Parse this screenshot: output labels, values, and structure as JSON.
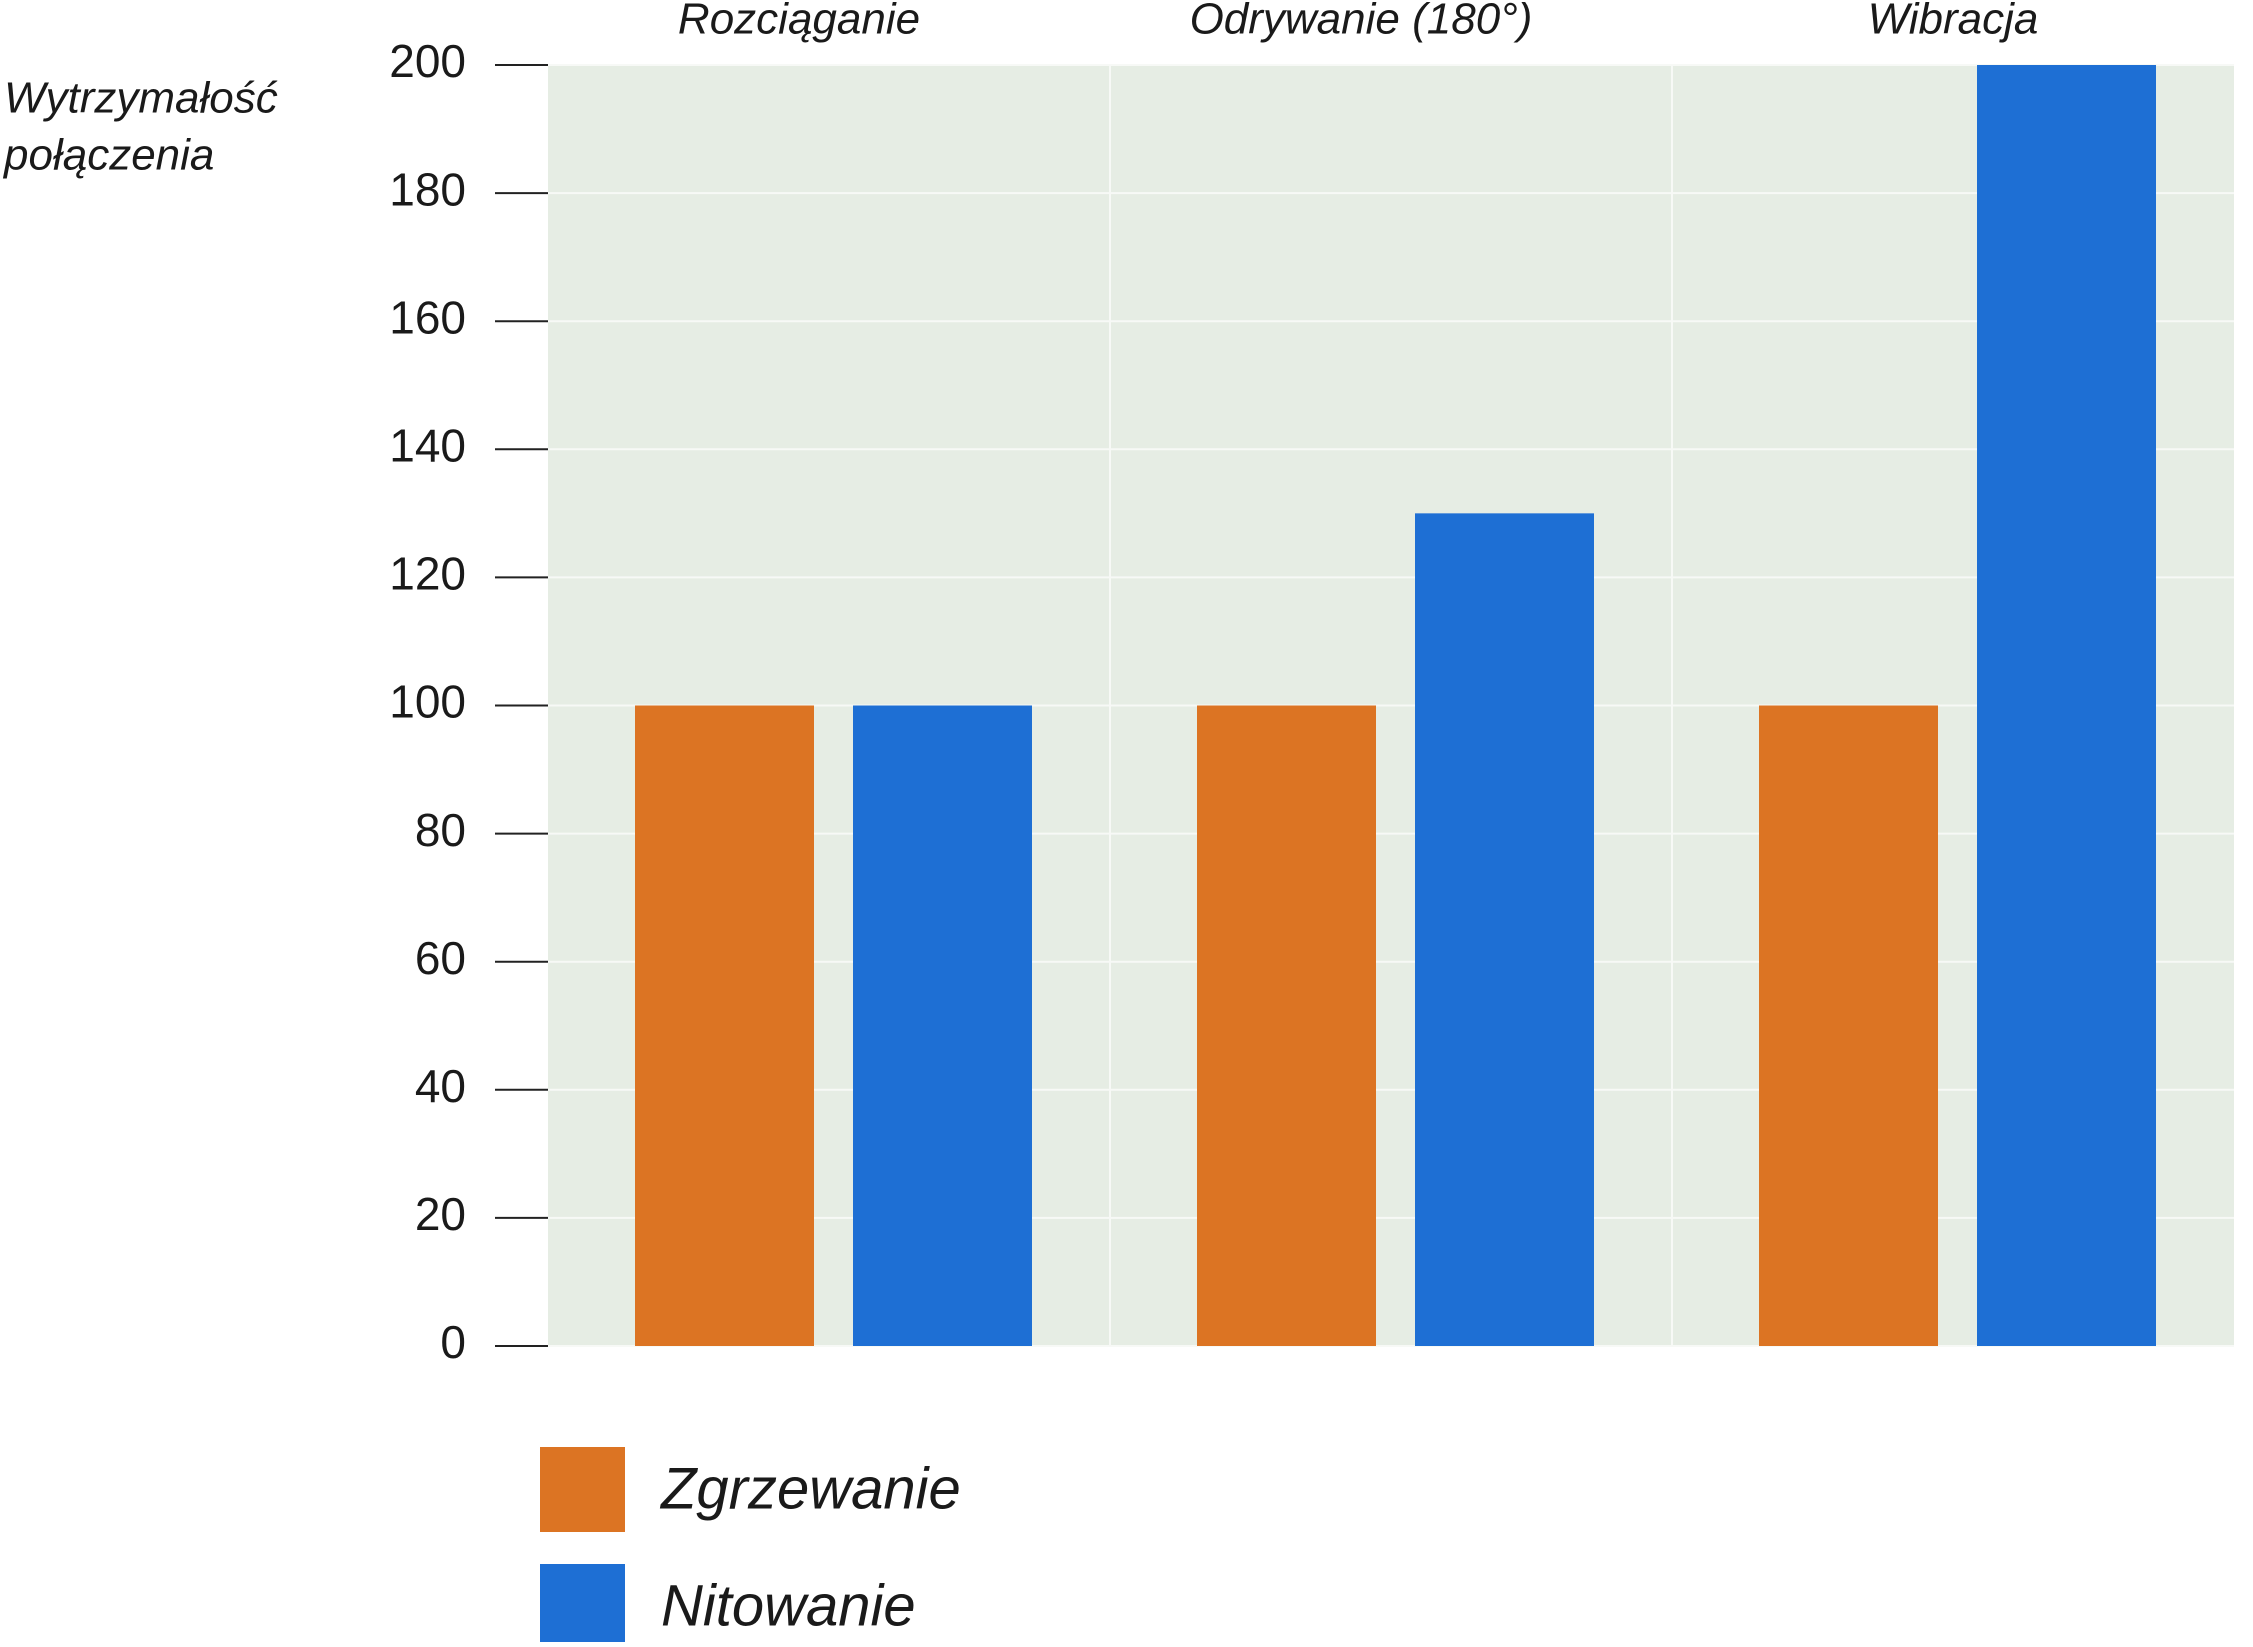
{
  "chart_data": {
    "type": "bar",
    "y_label": [
      "Wytrzymałość",
      "połączenia"
    ],
    "categories": [
      "Rozciąganie",
      "Odrywanie (180°)",
      "Wibracja"
    ],
    "series": [
      {
        "name": "Zgrzewanie",
        "color": "#dc7423",
        "values": [
          100,
          100,
          100
        ]
      },
      {
        "name": "Nitowanie",
        "color": "#1e6fd4",
        "values": [
          100,
          130,
          200
        ]
      }
    ],
    "ylim": [
      0,
      200
    ],
    "yticks": [
      0,
      20,
      40,
      60,
      80,
      100,
      120,
      140,
      160,
      180,
      200
    ],
    "grid": true,
    "plot_background": "#e6ede4"
  }
}
